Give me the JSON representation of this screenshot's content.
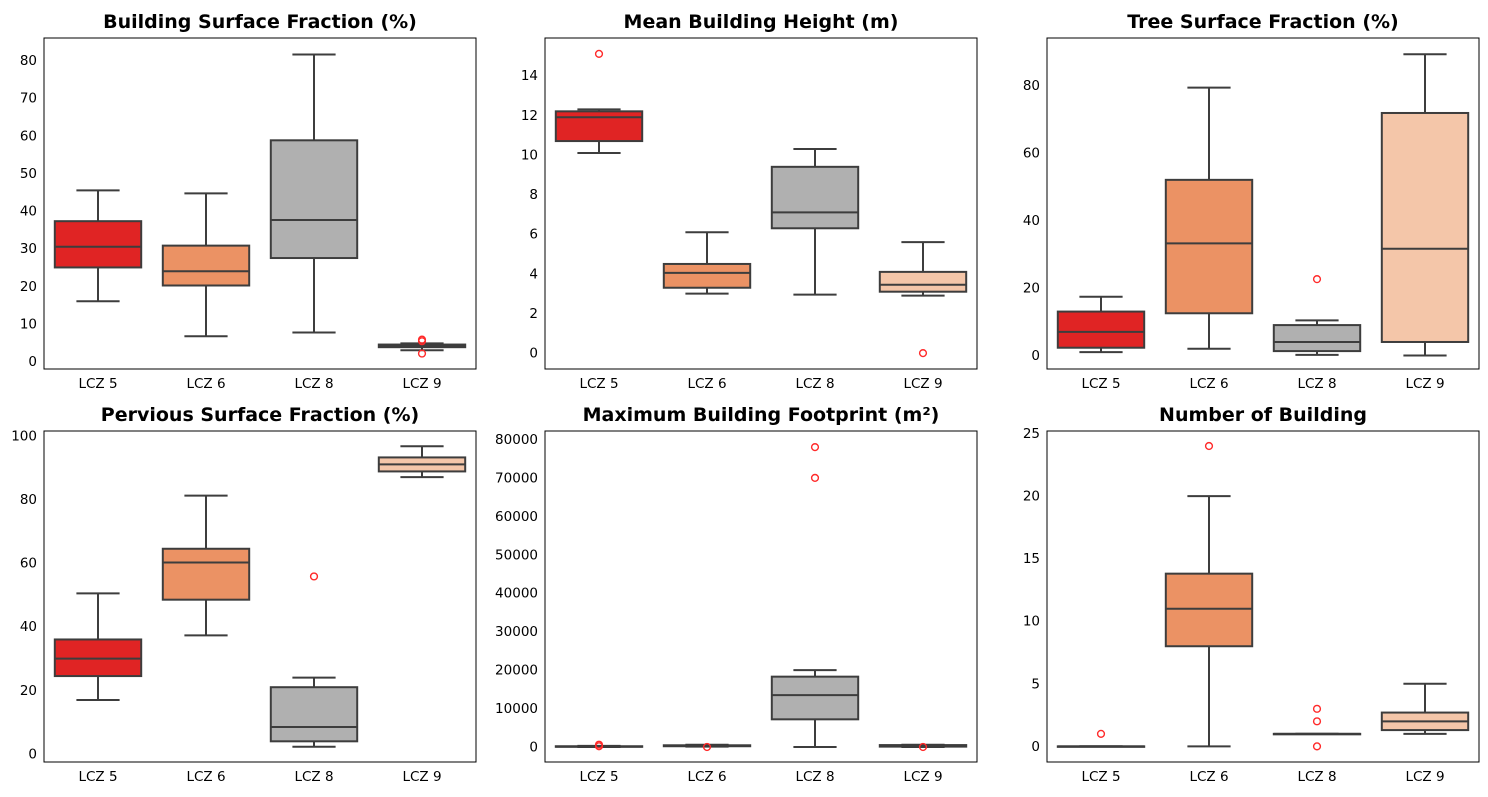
{
  "figure": {
    "box_line_color": "#3d3d3d",
    "outlier_color": "#ff2a2a",
    "category_colors": {
      "LCZ 5": "#e02424",
      "LCZ 6": "#eb9264",
      "LCZ 8": "#b0b0b0",
      "LCZ 9": "#f4c6a9"
    }
  },
  "chart_data": [
    {
      "type": "box",
      "title": "Building Surface Fraction (%)",
      "categories": [
        "LCZ 5",
        "LCZ 6",
        "LCZ 8",
        "LCZ 9"
      ],
      "ylim": [
        -2,
        86
      ],
      "yticks": [
        0,
        10,
        20,
        30,
        40,
        50,
        60,
        70,
        80
      ],
      "boxes": [
        {
          "whislo": 16,
          "q1": 25,
          "med": 30.5,
          "q3": 37.3,
          "whishi": 45.5,
          "fliers": []
        },
        {
          "whislo": 6.7,
          "q1": 20.2,
          "med": 24,
          "q3": 30.8,
          "whishi": 44.7,
          "fliers": []
        },
        {
          "whislo": 7.7,
          "q1": 27.5,
          "med": 37.6,
          "q3": 58.8,
          "whishi": 81.6,
          "fliers": []
        },
        {
          "whislo": 3,
          "q1": 3.8,
          "med": 4.1,
          "q3": 4.5,
          "whishi": 4.8,
          "fliers": [
            5.8,
            5.4,
            2.1
          ]
        }
      ]
    },
    {
      "type": "box",
      "title": "Mean Building Height (m)",
      "categories": [
        "LCZ 5",
        "LCZ 6",
        "LCZ 8",
        "LCZ 9"
      ],
      "ylim": [
        -0.8,
        15.9
      ],
      "yticks": [
        0,
        2,
        4,
        6,
        8,
        10,
        12,
        14
      ],
      "boxes": [
        {
          "whislo": 10.1,
          "q1": 10.7,
          "med": 11.9,
          "q3": 12.2,
          "whishi": 12.3,
          "fliers": [
            15.1
          ]
        },
        {
          "whislo": 3,
          "q1": 3.3,
          "med": 4.05,
          "q3": 4.5,
          "whishi": 6.1,
          "fliers": []
        },
        {
          "whislo": 2.95,
          "q1": 6.3,
          "med": 7.1,
          "q3": 9.4,
          "whishi": 10.3,
          "fliers": []
        },
        {
          "whislo": 2.9,
          "q1": 3.1,
          "med": 3.45,
          "q3": 4.1,
          "whishi": 5.6,
          "fliers": [
            0
          ]
        }
      ]
    },
    {
      "type": "box",
      "title": "Tree Surface Fraction (%)",
      "categories": [
        "LCZ 5",
        "LCZ 6",
        "LCZ 8",
        "LCZ 9"
      ],
      "ylim": [
        -4,
        94
      ],
      "yticks": [
        0,
        20,
        40,
        60,
        80
      ],
      "boxes": [
        {
          "whislo": 1,
          "q1": 2.3,
          "med": 7,
          "q3": 13,
          "whishi": 17.4,
          "fliers": []
        },
        {
          "whislo": 2,
          "q1": 12.5,
          "med": 33.2,
          "q3": 52,
          "whishi": 79.3,
          "fliers": []
        },
        {
          "whislo": 0.2,
          "q1": 1.3,
          "med": 4,
          "q3": 9,
          "whishi": 10.4,
          "fliers": [
            22.6
          ]
        },
        {
          "whislo": 0,
          "q1": 4,
          "med": 31.6,
          "q3": 71.8,
          "whishi": 89.2,
          "fliers": []
        }
      ]
    },
    {
      "type": "box",
      "title": "Pervious Surface Fraction (%)",
      "categories": [
        "LCZ 5",
        "LCZ 6",
        "LCZ 8",
        "LCZ 9"
      ],
      "ylim": [
        -2.5,
        101.5
      ],
      "yticks": [
        0,
        20,
        40,
        60,
        80,
        100
      ],
      "boxes": [
        {
          "whislo": 17,
          "q1": 24.5,
          "med": 30,
          "q3": 36,
          "whishi": 50.5,
          "fliers": []
        },
        {
          "whislo": 37.3,
          "q1": 48.5,
          "med": 60.2,
          "q3": 64.5,
          "whishi": 81.2,
          "fliers": []
        },
        {
          "whislo": 2.3,
          "q1": 4,
          "med": 8.5,
          "q3": 21,
          "whishi": 24,
          "fliers": [
            55.8
          ]
        },
        {
          "whislo": 87,
          "q1": 88.8,
          "med": 91,
          "q3": 93.2,
          "whishi": 96.7,
          "fliers": []
        }
      ]
    },
    {
      "type": "box",
      "title": "Maximum Building Footprint (m²)",
      "categories": [
        "LCZ 5",
        "LCZ 6",
        "LCZ 8",
        "LCZ 9"
      ],
      "ylim": [
        -3900,
        82200
      ],
      "yticks": [
        0,
        10000,
        20000,
        30000,
        40000,
        50000,
        60000,
        70000,
        80000
      ],
      "boxes": [
        {
          "whislo": 0,
          "q1": 50,
          "med": 100,
          "q3": 200,
          "whishi": 300,
          "fliers": [
            600,
            200
          ]
        },
        {
          "whislo": 100,
          "q1": 200,
          "med": 300,
          "q3": 450,
          "whishi": 600,
          "fliers": [
            0
          ]
        },
        {
          "whislo": 0,
          "q1": 7200,
          "med": 13500,
          "q3": 18300,
          "whishi": 20000,
          "fliers": [
            78000,
            70000
          ]
        },
        {
          "whislo": 0,
          "q1": 100,
          "med": 300,
          "q3": 500,
          "whishi": 600,
          "fliers": [
            0
          ]
        }
      ]
    },
    {
      "type": "box",
      "title": "Number of Building",
      "categories": [
        "LCZ 5",
        "LCZ 6",
        "LCZ 8",
        "LCZ 9"
      ],
      "ylim": [
        -1.25,
        25.2
      ],
      "yticks": [
        0,
        5,
        10,
        15,
        20,
        25
      ],
      "boxes": [
        {
          "whislo": 0,
          "q1": 0,
          "med": 0,
          "q3": 0,
          "whishi": 0,
          "fliers": [
            1
          ]
        },
        {
          "whislo": 0,
          "q1": 8,
          "med": 11,
          "q3": 13.8,
          "whishi": 20,
          "fliers": [
            24
          ]
        },
        {
          "whislo": 1,
          "q1": 1,
          "med": 1,
          "q3": 1,
          "whishi": 1,
          "fliers": [
            3,
            2,
            0
          ]
        },
        {
          "whislo": 1,
          "q1": 1.3,
          "med": 2,
          "q3": 2.7,
          "whishi": 5,
          "fliers": []
        }
      ]
    }
  ]
}
